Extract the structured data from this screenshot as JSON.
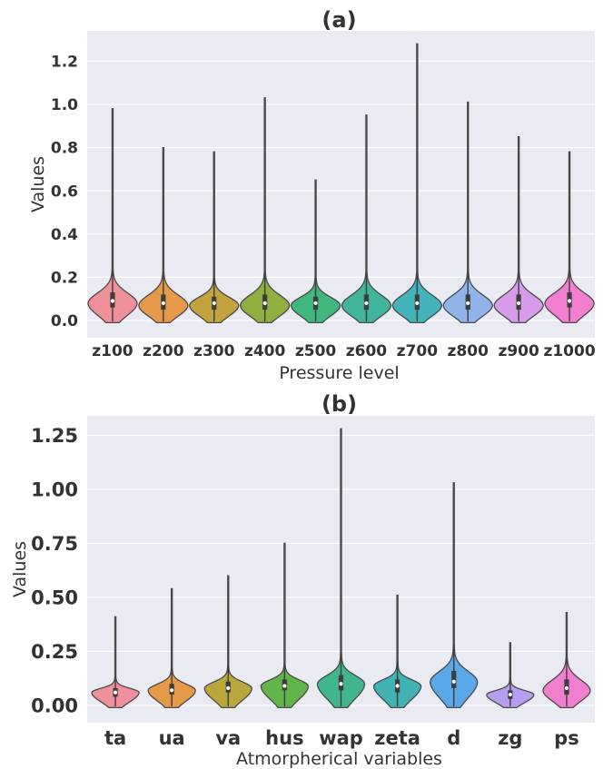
{
  "chart_data": [
    {
      "id": "a",
      "type": "violin",
      "title": "(a)",
      "xlabel": "Pressure level",
      "ylabel": "Values",
      "ylim": [
        -0.08,
        1.34
      ],
      "yticks": [
        "0.0",
        "0.2",
        "0.4",
        "0.6",
        "0.8",
        "1.0",
        "1.2"
      ],
      "grid": true,
      "background": "#eaeaf2",
      "categories": [
        "z100",
        "z200",
        "z300",
        "z400",
        "z500",
        "z600",
        "z700",
        "z800",
        "z900",
        "z1000"
      ],
      "colors": [
        "#f0909a",
        "#e7994a",
        "#c2a33e",
        "#8fb03e",
        "#3fb77d",
        "#41b49c",
        "#42b2bb",
        "#90b3ea",
        "#d69be9",
        "#f27ed0"
      ],
      "max": [
        0.98,
        0.8,
        0.78,
        1.03,
        0.65,
        0.95,
        1.28,
        1.01,
        0.85,
        0.78
      ],
      "min": [
        -0.01,
        -0.01,
        -0.01,
        -0.01,
        -0.01,
        -0.01,
        -0.01,
        -0.01,
        -0.01,
        -0.01
      ],
      "median": [
        0.09,
        0.08,
        0.08,
        0.08,
        0.08,
        0.08,
        0.08,
        0.08,
        0.08,
        0.09
      ],
      "q1": [
        0.06,
        0.05,
        0.05,
        0.05,
        0.05,
        0.05,
        0.05,
        0.05,
        0.05,
        0.06
      ],
      "q3": [
        0.13,
        0.12,
        0.11,
        0.12,
        0.11,
        0.12,
        0.12,
        0.12,
        0.12,
        0.13
      ],
      "mode": [
        0.08,
        0.07,
        0.07,
        0.07,
        0.07,
        0.07,
        0.07,
        0.07,
        0.07,
        0.08
      ]
    },
    {
      "id": "b",
      "type": "violin",
      "title": "(b)",
      "xlabel": "Atmorpherical variables",
      "ylabel": "Values",
      "ylim": [
        -0.08,
        1.34
      ],
      "yticks": [
        "0.00",
        "0.25",
        "0.50",
        "0.75",
        "1.00",
        "1.25"
      ],
      "grid": true,
      "background": "#eaeaf2",
      "categories": [
        "ta",
        "ua",
        "va",
        "hus",
        "wap",
        "zeta",
        "d",
        "zg",
        "ps"
      ],
      "colors": [
        "#f0909a",
        "#e7994a",
        "#b9a73e",
        "#62b54a",
        "#40b58e",
        "#40b2b3",
        "#5aa8e8",
        "#b79ded",
        "#f27ed0"
      ],
      "max": [
        0.41,
        0.54,
        0.6,
        0.75,
        1.28,
        0.51,
        1.03,
        0.29,
        0.43
      ],
      "min": [
        -0.01,
        -0.01,
        -0.01,
        -0.01,
        -0.01,
        -0.01,
        -0.01,
        -0.01,
        -0.01
      ],
      "median": [
        0.06,
        0.07,
        0.08,
        0.09,
        0.1,
        0.09,
        0.11,
        0.05,
        0.08
      ],
      "q1": [
        0.04,
        0.05,
        0.06,
        0.07,
        0.07,
        0.06,
        0.08,
        0.03,
        0.05
      ],
      "q3": [
        0.08,
        0.1,
        0.11,
        0.12,
        0.14,
        0.12,
        0.16,
        0.07,
        0.12
      ],
      "mode": [
        0.06,
        0.07,
        0.08,
        0.09,
        0.1,
        0.09,
        0.11,
        0.05,
        0.07
      ]
    }
  ]
}
